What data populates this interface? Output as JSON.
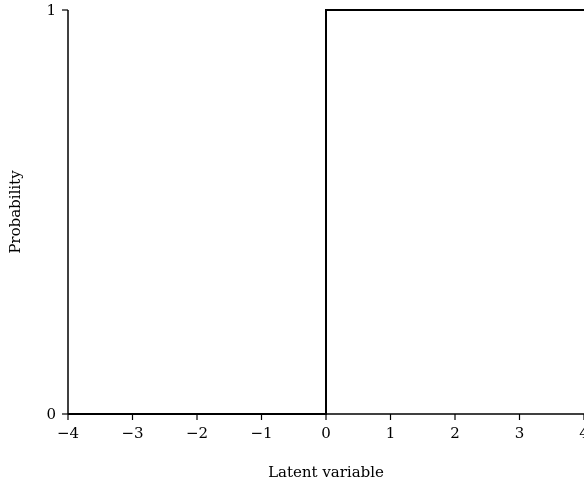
{
  "chart_data": {
    "type": "line",
    "title": "",
    "xlabel": "Latent variable",
    "ylabel": "Probability",
    "xlim": [
      -4,
      4
    ],
    "ylim": [
      0,
      1
    ],
    "x_ticks": [
      -4,
      -3,
      -2,
      -1,
      0,
      1,
      2,
      3,
      4
    ],
    "x_tick_labels": [
      "−4",
      "−3",
      "−2",
      "−1",
      "0",
      "1",
      "2",
      "3",
      "4"
    ],
    "y_ticks": [
      0,
      1
    ],
    "y_tick_labels": [
      "0",
      "1"
    ],
    "grid": false,
    "legend": "none",
    "line_color": "#000000",
    "series": [
      {
        "x": [
          -4,
          0,
          0,
          4
        ],
        "y": [
          0,
          0,
          1,
          1
        ]
      }
    ]
  }
}
